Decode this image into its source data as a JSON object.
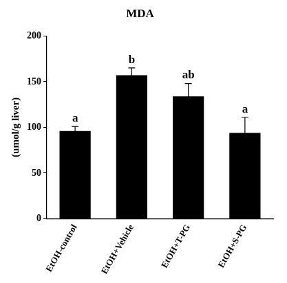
{
  "chart_data": {
    "type": "bar",
    "title": "MDA",
    "ylabel": "(umol/g liver)",
    "categories": [
      "EtOH-control",
      "EtOH+Vehicle",
      "EtOH+T-PG",
      "EtOH+S-PG"
    ],
    "values": [
      96,
      157,
      134,
      94
    ],
    "errors": [
      5,
      8,
      14,
      17
    ],
    "annotations": [
      "a",
      "b",
      "ab",
      "a"
    ],
    "color": "#000000",
    "ylim": [
      0,
      200
    ],
    "yticks": [
      0,
      50,
      100,
      150,
      200
    ],
    "grid": false
  }
}
